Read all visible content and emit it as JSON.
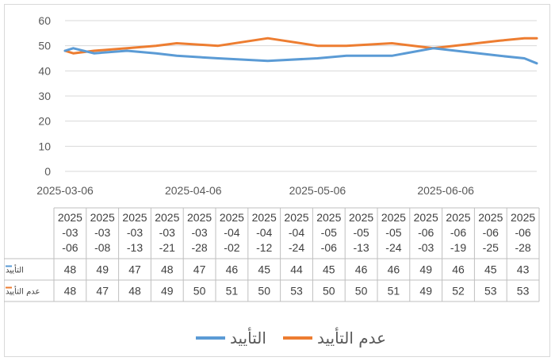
{
  "chart_data": {
    "type": "line",
    "title": "",
    "ylim": [
      0,
      60
    ],
    "y_ticks": [
      "0",
      "10",
      "20",
      "30",
      "40",
      "50",
      "60"
    ],
    "x_axis_labels": [
      "2025-03-06",
      "2025-04-06",
      "2025-05-06",
      "2025-06-06"
    ],
    "categories": [
      "2025-03-06",
      "2025-03-08",
      "2025-03-13",
      "2025-03-21",
      "2025-03-28",
      "2025-04-02",
      "2025-04-12",
      "2025-04-24",
      "2025-05-06",
      "2025-05-13",
      "2025-05-24",
      "2025-06-03",
      "2025-06-19",
      "2025-06-25",
      "2025-06-28"
    ],
    "series": [
      {
        "name": "التأييد",
        "color": "#5b9bd5",
        "values": [
          48,
          49,
          47,
          48,
          47,
          46,
          45,
          44,
          45,
          46,
          46,
          49,
          46,
          45,
          43
        ]
      },
      {
        "name": "عدم التأييد",
        "color": "#ed7d31",
        "values": [
          48,
          47,
          48,
          49,
          50,
          51,
          50,
          53,
          50,
          50,
          51,
          49,
          52,
          53,
          53
        ]
      }
    ],
    "gridlines": true,
    "data_table": true,
    "legend_position": "bottom"
  }
}
